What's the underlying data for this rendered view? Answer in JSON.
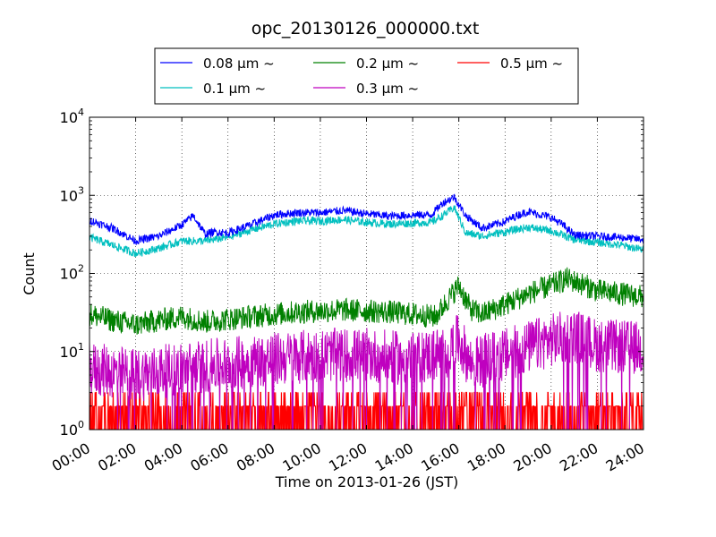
{
  "chart_data": {
    "type": "line",
    "title": "opc_20130126_000000.txt",
    "xlabel": "Time on 2013-01-26 (JST)",
    "ylabel": "Count",
    "yscale": "log",
    "ylim": [
      1,
      10000
    ],
    "xlim": [
      "00:00",
      "24:00"
    ],
    "grid": true,
    "legend_position": "top",
    "x_ticks": [
      "00:00",
      "02:00",
      "04:00",
      "06:00",
      "08:00",
      "10:00",
      "12:00",
      "14:00",
      "16:00",
      "18:00",
      "20:00",
      "22:00",
      "24:00"
    ],
    "y_ticks": [
      {
        "base": "10",
        "exp": "0"
      },
      {
        "base": "10",
        "exp": "1"
      },
      {
        "base": "10",
        "exp": "2"
      },
      {
        "base": "10",
        "exp": "3"
      },
      {
        "base": "10",
        "exp": "4"
      }
    ],
    "series": [
      {
        "name": "0.08 μm ~",
        "color": "#0000ff",
        "x_hours": [
          0,
          1,
          2,
          3,
          4,
          4.5,
          5,
          5.5,
          6,
          7,
          8,
          9,
          10,
          11,
          12,
          13,
          14,
          14.8,
          15.3,
          15.8,
          16.3,
          17,
          18,
          18.5,
          19,
          20,
          20.5,
          21,
          22,
          23,
          24
        ],
        "values": [
          480,
          380,
          260,
          300,
          420,
          550,
          320,
          340,
          330,
          420,
          560,
          600,
          600,
          640,
          580,
          540,
          560,
          560,
          800,
          950,
          550,
          380,
          460,
          550,
          620,
          520,
          420,
          310,
          300,
          290,
          270
        ]
      },
      {
        "name": "0.1 μm ~",
        "color": "#00bfbf",
        "x_hours": [
          0,
          1,
          2,
          3,
          4,
          5,
          6,
          7,
          8,
          9,
          10,
          11,
          12,
          13,
          14,
          14.8,
          15.3,
          15.8,
          16.3,
          17,
          18,
          19,
          20,
          20.5,
          21,
          22,
          23,
          24
        ],
        "values": [
          290,
          230,
          180,
          210,
          260,
          260,
          290,
          360,
          430,
          470,
          470,
          490,
          450,
          430,
          440,
          450,
          550,
          700,
          330,
          300,
          340,
          390,
          350,
          310,
          270,
          250,
          230,
          200
        ]
      },
      {
        "name": "0.2 μm ~",
        "color": "#008000",
        "x_hours": [
          0,
          1,
          2,
          3,
          4,
          5,
          6,
          7,
          8,
          9,
          10,
          11,
          12,
          13,
          14,
          15,
          15.5,
          16,
          16.5,
          17,
          18,
          19,
          20,
          20.7,
          21.5,
          22,
          23,
          24
        ],
        "values": [
          30,
          25,
          22,
          25,
          28,
          24,
          26,
          28,
          30,
          32,
          33,
          34,
          33,
          32,
          30,
          28,
          45,
          70,
          35,
          30,
          40,
          55,
          70,
          85,
          70,
          60,
          55,
          50
        ]
      },
      {
        "name": "0.3 μm ~",
        "color": "#bf00bf",
        "x_hours": [
          0,
          2,
          4,
          6,
          8,
          10,
          12,
          14,
          15.5,
          16,
          16.5,
          18,
          20,
          21,
          22,
          24
        ],
        "values": [
          6,
          5,
          6,
          7,
          8,
          9,
          9,
          8,
          10,
          14,
          7,
          9,
          14,
          16,
          12,
          11
        ]
      },
      {
        "name": "0.5 μm ~",
        "color": "#ff0000",
        "x_hours": [
          0,
          6,
          12,
          16,
          20,
          24
        ],
        "values": [
          1.5,
          1.6,
          2,
          2,
          2,
          2
        ]
      }
    ]
  }
}
